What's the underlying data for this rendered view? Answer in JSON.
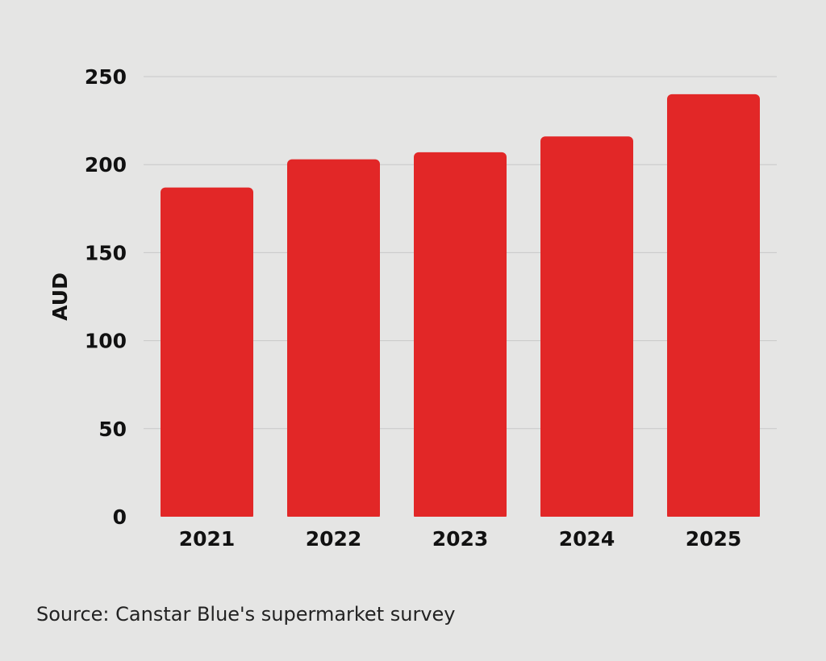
{
  "chart_data": {
    "type": "bar",
    "categories": [
      "2021",
      "2022",
      "2023",
      "2024",
      "2025"
    ],
    "values": [
      187,
      203,
      207,
      216,
      240
    ],
    "ylabel": "AUD",
    "xlabel": "",
    "ylim": [
      0,
      250
    ],
    "yticks": [
      0,
      50,
      100,
      150,
      200,
      250
    ],
    "grid": true,
    "bar_color": "#e22727",
    "grid_color": "#c8c8c8"
  },
  "source": "Source: Canstar Blue's supermarket survey"
}
